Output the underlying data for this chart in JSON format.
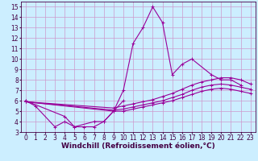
{
  "xlabel": "Windchill (Refroidissement éolien,°C)",
  "bg_color": "#cceeff",
  "grid_color": "#cc99cc",
  "line_color": "#990099",
  "xlim": [
    -0.5,
    23.5
  ],
  "ylim": [
    3,
    15.5
  ],
  "xticks": [
    0,
    1,
    2,
    3,
    4,
    5,
    6,
    7,
    8,
    9,
    10,
    11,
    12,
    13,
    14,
    15,
    16,
    17,
    18,
    19,
    20,
    21,
    22,
    23
  ],
  "yticks": [
    3,
    4,
    5,
    6,
    7,
    8,
    9,
    10,
    11,
    12,
    13,
    14,
    15
  ],
  "series": [
    {
      "x": [
        0,
        1,
        3,
        4,
        5,
        7,
        8,
        9,
        10,
        11,
        12,
        13,
        14,
        15,
        16,
        17,
        19,
        20,
        21,
        22
      ],
      "y": [
        6.0,
        5.5,
        3.5,
        4.0,
        3.5,
        4.0,
        4.0,
        5.0,
        7.0,
        11.5,
        13.0,
        15.0,
        13.5,
        8.5,
        9.5,
        10.0,
        8.5,
        8.0,
        8.0,
        7.5
      ]
    },
    {
      "x": [
        0,
        4,
        5,
        6,
        7,
        8,
        9,
        10
      ],
      "y": [
        6.0,
        4.5,
        3.5,
        3.5,
        3.5,
        4.0,
        5.0,
        6.0
      ]
    },
    {
      "x": [
        0,
        9,
        10,
        11,
        12,
        13,
        14,
        15,
        16,
        17,
        18,
        19,
        20,
        21,
        22,
        23
      ],
      "y": [
        5.9,
        5.3,
        5.5,
        5.7,
        5.9,
        6.1,
        6.4,
        6.7,
        7.1,
        7.5,
        7.8,
        8.0,
        8.2,
        8.2,
        8.0,
        7.6
      ]
    },
    {
      "x": [
        0,
        9,
        10,
        11,
        12,
        13,
        14,
        15,
        16,
        17,
        18,
        19,
        20,
        21,
        22,
        23
      ],
      "y": [
        5.9,
        5.1,
        5.2,
        5.4,
        5.6,
        5.8,
        6.0,
        6.3,
        6.6,
        7.0,
        7.3,
        7.5,
        7.6,
        7.5,
        7.3,
        7.1
      ]
    },
    {
      "x": [
        0,
        9,
        10,
        11,
        12,
        13,
        14,
        15,
        16,
        17,
        18,
        19,
        20,
        21,
        22,
        23
      ],
      "y": [
        5.9,
        5.0,
        5.0,
        5.2,
        5.4,
        5.6,
        5.8,
        6.0,
        6.3,
        6.6,
        6.9,
        7.1,
        7.2,
        7.1,
        6.9,
        6.7
      ]
    }
  ],
  "tick_fontsize": 5.5,
  "xlabel_fontsize": 6.5,
  "marker": "+",
  "markersize": 3,
  "linewidth": 0.8
}
